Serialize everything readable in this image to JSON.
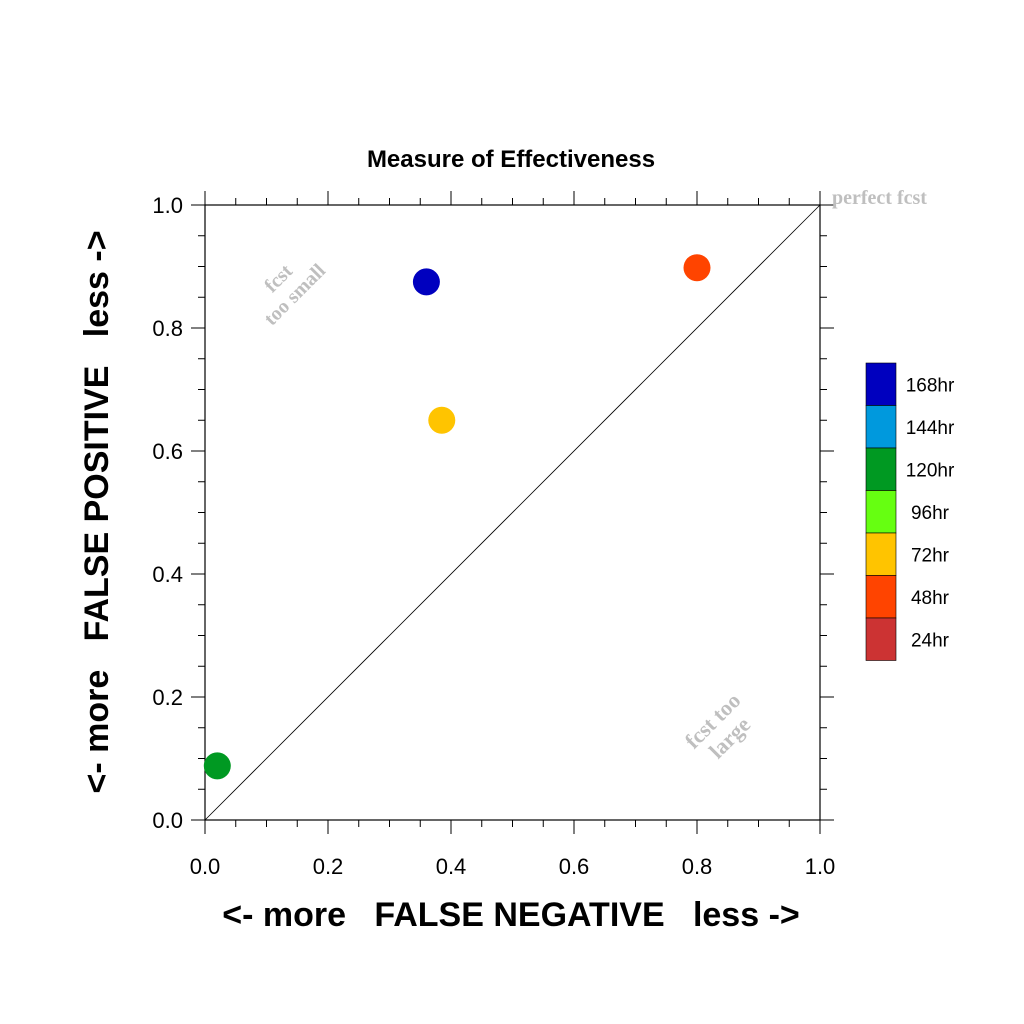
{
  "chart_data": {
    "type": "scatter",
    "title": "Measure of Effectiveness",
    "xlabel": "<- more   FALSE NEGATIVE   less ->",
    "ylabel": "<- more   FALSE POSITIVE   less ->",
    "xlim": [
      0.0,
      1.0
    ],
    "ylim": [
      0.0,
      1.0
    ],
    "xticks": [
      "0.0",
      "0.2",
      "0.4",
      "0.6",
      "0.8",
      "1.0"
    ],
    "yticks": [
      "0.0",
      "0.2",
      "0.4",
      "0.6",
      "0.8",
      "1.0"
    ],
    "grid": false,
    "reference_line": "diagonal y = x",
    "annotations": {
      "perfect": "perfect fcst",
      "small_line1": "fcst",
      "small_line2": "too small",
      "large_line1": "fcst too",
      "large_line2": "large"
    },
    "legend": {
      "placement": "right",
      "entries": [
        {
          "label": "168hr",
          "color": "#0000bf"
        },
        {
          "label": "144hr",
          "color": "#0099dd"
        },
        {
          "label": "120hr",
          "color": "#009922"
        },
        {
          "label": "96hr",
          "color": "#66ff11"
        },
        {
          "label": "72hr",
          "color": "#ffc400"
        },
        {
          "label": "48hr",
          "color": "#ff4400"
        },
        {
          "label": "24hr",
          "color": "#cc3333"
        }
      ]
    },
    "points": [
      {
        "series": "168hr",
        "x": 0.36,
        "y": 0.875,
        "color": "#0000bf"
      },
      {
        "series": "48hr",
        "x": 0.8,
        "y": 0.898,
        "color": "#ff4400"
      },
      {
        "series": "72hr",
        "x": 0.385,
        "y": 0.65,
        "color": "#ffc400"
      },
      {
        "series": "120hr",
        "x": 0.02,
        "y": 0.088,
        "color": "#009922"
      }
    ]
  }
}
